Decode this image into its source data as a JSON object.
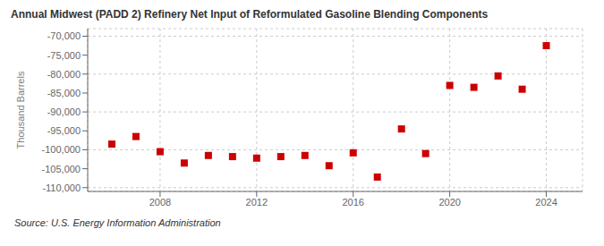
{
  "chart_data": {
    "type": "scatter",
    "title": "Annual Midwest (PADD 2) Refinery Net Input of Reformulated Gasoline Blending Components",
    "y_label": "Thousand Barrels",
    "annotations": [
      "Source: U.S. Energy Information Administration"
    ],
    "x": [
      2006,
      2007,
      2008,
      2009,
      2010,
      2011,
      2012,
      2013,
      2014,
      2015,
      2016,
      2017,
      2018,
      2019,
      2020,
      2021,
      2022,
      2023,
      2024
    ],
    "values": [
      -98500,
      -96500,
      -100500,
      -103500,
      -101500,
      -101800,
      -102200,
      -101800,
      -101500,
      -104200,
      -100800,
      -107200,
      -94500,
      -101000,
      -83000,
      -83500,
      -80500,
      -84000,
      -72500
    ],
    "color": "#cc0000",
    "marker": "square",
    "xlim": [
      2005.0,
      2025.5
    ],
    "xticks": [
      2008,
      2012,
      2016,
      2020,
      2024
    ],
    "ylim": [
      -111000,
      -68000
    ],
    "yticks": [
      {
        "value": -70000,
        "label": "-70,000"
      },
      {
        "value": -75000,
        "label": "-75,000"
      },
      {
        "value": -80000,
        "label": "-80,000"
      },
      {
        "value": -85000,
        "label": "-85,000"
      },
      {
        "value": -90000,
        "label": "-90,000"
      },
      {
        "value": -95000,
        "label": "-95,000"
      },
      {
        "value": -100000,
        "label": "-100,000"
      },
      {
        "value": -105000,
        "label": "-105,000"
      },
      {
        "value": -110000,
        "label": "-110,000"
      }
    ],
    "grid": true
  }
}
